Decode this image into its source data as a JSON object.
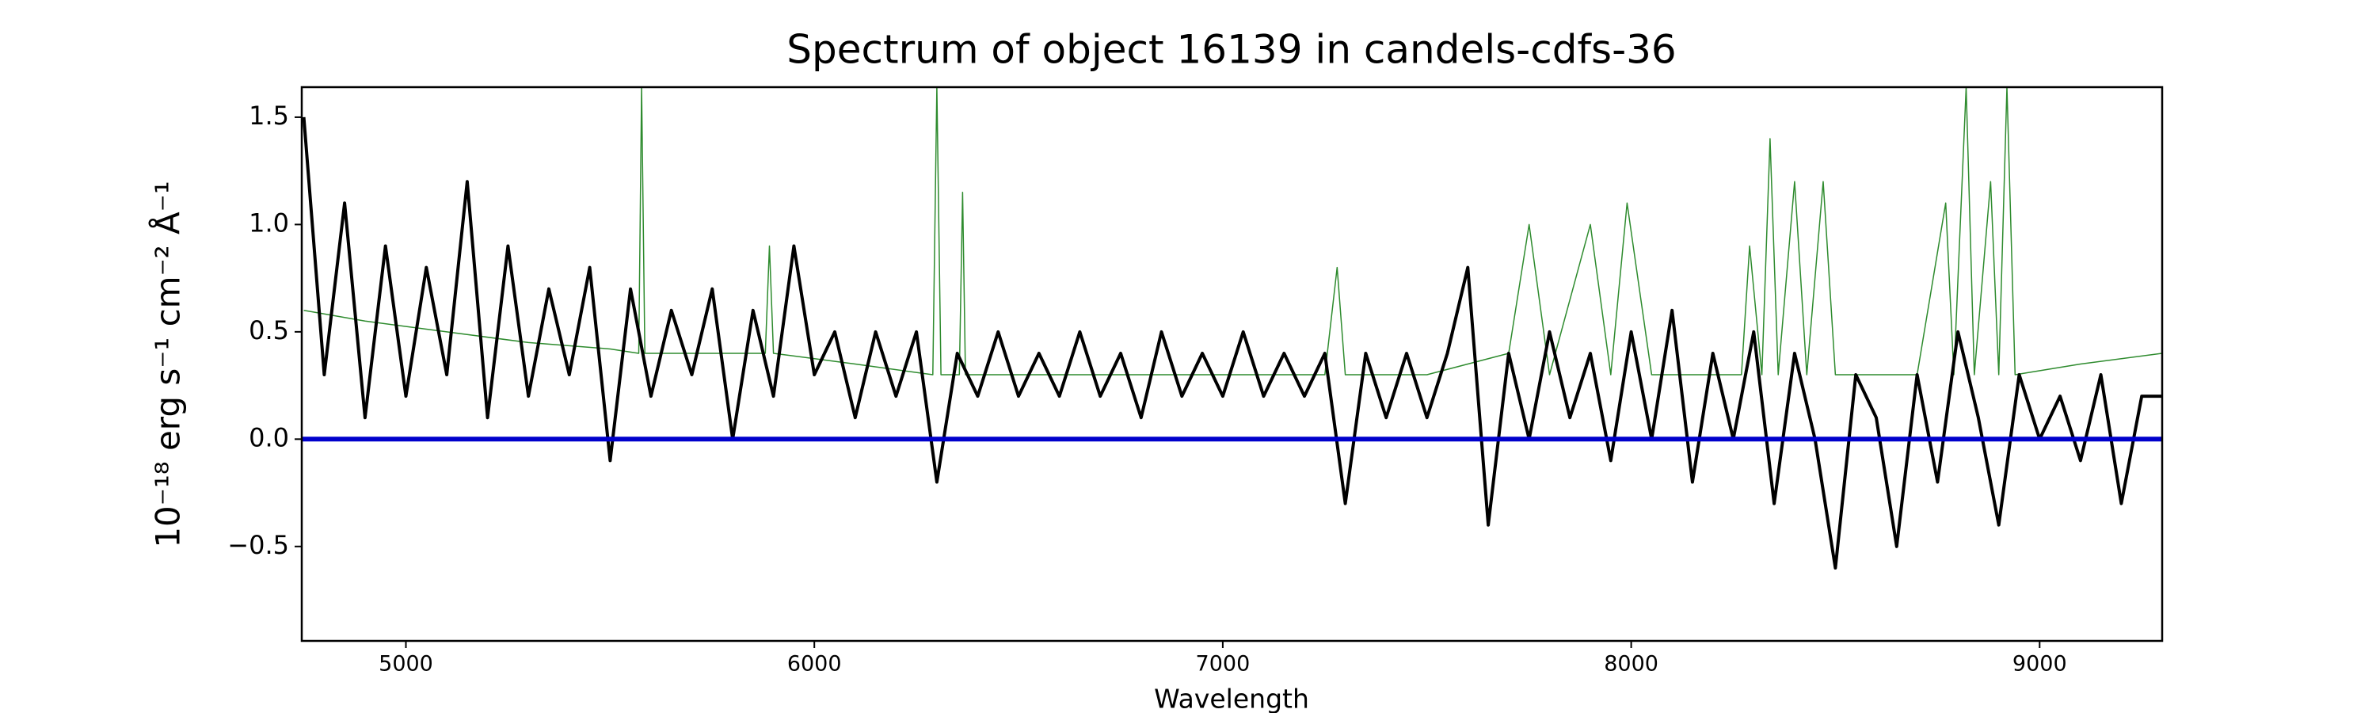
{
  "chart_data": {
    "type": "line",
    "title": "Spectrum of object 16139 in candels-cdfs-36",
    "xlabel": "Wavelength",
    "ylabel": "10⁻¹⁸ erg s⁻¹ cm⁻² Å⁻¹",
    "xlim": [
      4745,
      9300
    ],
    "ylim": [
      -0.94,
      1.64
    ],
    "xticks": [
      5000,
      6000,
      7000,
      8000,
      9000
    ],
    "yticks": [
      {
        "value": -0.5,
        "label": "−0.5"
      },
      {
        "value": 0,
        "label": "0.0"
      },
      0.5,
      {
        "value": 1,
        "label": "1.0"
      },
      1.5
    ],
    "series": [
      {
        "color": "#2e8b2e",
        "width": 1.5,
        "x": [
          4750,
          4900,
          5100,
          5300,
          5500,
          5570,
          5577,
          5585,
          5700,
          5880,
          5890,
          5900,
          6100,
          6290,
          6300,
          6310,
          6355,
          6363,
          6370,
          6600,
          6900,
          7250,
          7280,
          7300,
          7500,
          7700,
          7750,
          7800,
          7900,
          7950,
          7990,
          8050,
          8270,
          8290,
          8320,
          8340,
          8360,
          8400,
          8430,
          8470,
          8500,
          8700,
          8770,
          8790,
          8820,
          8840,
          8880,
          8900,
          8920,
          8940,
          9100,
          9300
        ],
        "values": [
          0.6,
          0.55,
          0.5,
          0.45,
          0.42,
          0.4,
          1.64,
          0.4,
          0.4,
          0.4,
          0.9,
          0.4,
          0.35,
          0.3,
          1.64,
          0.3,
          0.3,
          1.15,
          0.3,
          0.3,
          0.3,
          0.3,
          0.8,
          0.3,
          0.3,
          0.4,
          1.0,
          0.3,
          1.0,
          0.3,
          1.1,
          0.3,
          0.3,
          0.9,
          0.3,
          1.4,
          0.3,
          1.2,
          0.3,
          1.2,
          0.3,
          0.3,
          1.1,
          0.3,
          1.64,
          0.3,
          1.2,
          0.3,
          1.64,
          0.3,
          0.35,
          0.4
        ]
      },
      {
        "color": "#000000",
        "width": 4,
        "x": [
          4750,
          4800,
          4850,
          4900,
          4950,
          5000,
          5050,
          5100,
          5150,
          5200,
          5250,
          5300,
          5350,
          5400,
          5450,
          5500,
          5550,
          5600,
          5650,
          5700,
          5750,
          5800,
          5850,
          5900,
          5950,
          6000,
          6050,
          6100,
          6150,
          6200,
          6250,
          6300,
          6350,
          6400,
          6450,
          6500,
          6550,
          6600,
          6650,
          6700,
          6750,
          6800,
          6850,
          6900,
          6950,
          7000,
          7050,
          7100,
          7150,
          7200,
          7250,
          7300,
          7350,
          7400,
          7450,
          7500,
          7550,
          7600,
          7650,
          7700,
          7750,
          7800,
          7850,
          7900,
          7950,
          8000,
          8050,
          8100,
          8150,
          8200,
          8250,
          8300,
          8350,
          8400,
          8450,
          8500,
          8550,
          8600,
          8650,
          8700,
          8750,
          8800,
          8850,
          8900,
          8950,
          9000,
          9050,
          9100,
          9150,
          9200,
          9250,
          9300
        ],
        "values": [
          1.5,
          0.3,
          1.1,
          0.1,
          0.9,
          0.2,
          0.8,
          0.3,
          1.2,
          0.1,
          0.9,
          0.2,
          0.7,
          0.3,
          0.8,
          -0.1,
          0.7,
          0.2,
          0.6,
          0.3,
          0.7,
          0.0,
          0.6,
          0.2,
          0.9,
          0.3,
          0.5,
          0.1,
          0.5,
          0.2,
          0.5,
          -0.2,
          0.4,
          0.2,
          0.5,
          0.2,
          0.4,
          0.2,
          0.5,
          0.2,
          0.4,
          0.1,
          0.5,
          0.2,
          0.4,
          0.2,
          0.5,
          0.2,
          0.4,
          0.2,
          0.4,
          -0.3,
          0.4,
          0.1,
          0.4,
          0.1,
          0.4,
          0.8,
          -0.4,
          0.4,
          0.0,
          0.5,
          0.1,
          0.4,
          -0.1,
          0.5,
          0.0,
          0.6,
          -0.2,
          0.4,
          0.0,
          0.5,
          -0.3,
          0.4,
          0.0,
          -0.6,
          0.3,
          0.1,
          -0.5,
          0.3,
          -0.2,
          0.5,
          0.1,
          -0.4,
          0.3,
          0.0,
          0.2,
          -0.1,
          0.3,
          -0.3,
          0.2,
          0.2
        ]
      },
      {
        "color": "#0000cc",
        "width": 6,
        "x": [
          4745,
          9300
        ],
        "values": [
          0,
          0
        ]
      }
    ]
  }
}
